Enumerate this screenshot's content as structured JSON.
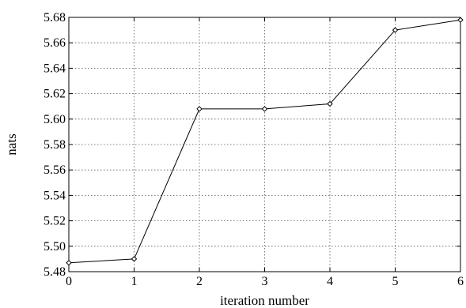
{
  "chart_data": {
    "type": "line",
    "title": "",
    "xlabel": "iteration number",
    "ylabel": "nats",
    "xlim": [
      0,
      6
    ],
    "ylim": [
      5.48,
      5.68
    ],
    "x_ticks": [
      "0",
      "1",
      "2",
      "3",
      "4",
      "5",
      "6"
    ],
    "y_ticks": [
      "5.48",
      "5.50",
      "5.52",
      "5.54",
      "5.56",
      "5.58",
      "5.60",
      "5.62",
      "5.64",
      "5.66",
      "5.68"
    ],
    "grid": true,
    "marker": "diamond",
    "series": [
      {
        "x": [
          0,
          1,
          2,
          3,
          4,
          5,
          6
        ],
        "values": [
          5.487,
          5.49,
          5.608,
          5.608,
          5.612,
          5.67,
          5.678
        ]
      }
    ]
  }
}
